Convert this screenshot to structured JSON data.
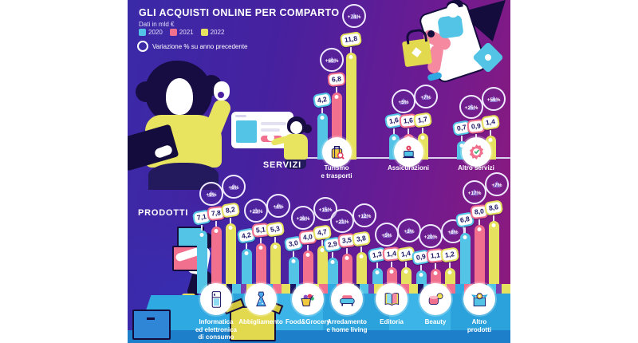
{
  "header": {
    "title": "GLI ACQUISTI ONLINE PER COMPARTO",
    "subtitle": "Dati in mld €",
    "legend": [
      {
        "label": "2020",
        "color": "#54c4e6"
      },
      {
        "label": "2021",
        "color": "#f0708e"
      },
      {
        "label": "2022",
        "color": "#e6e15e"
      }
    ],
    "note": "Variazione % su anno precedente"
  },
  "chart_data": [
    {
      "type": "bar",
      "section": "SERVIZI",
      "unit": "mld €",
      "years": [
        "2020",
        "2021",
        "2022"
      ],
      "year_colors": [
        "#54c4e6",
        "#f0708e",
        "#e6e15e"
      ],
      "groups": [
        {
          "label": [
            "Turismo",
            "e trasporti"
          ],
          "icon": "luggage-icon",
          "values": [
            4.2,
            6.8,
            11.8
          ],
          "display": [
            "4,2",
            "6,8",
            "11,8"
          ],
          "pct": [
            null,
            "+60%",
            "+74%"
          ]
        },
        {
          "label": [
            "Assicurazioni"
          ],
          "icon": "insurance-icon",
          "values": [
            1.6,
            1.6,
            1.7
          ],
          "display": [
            "1,6",
            "1,6",
            "1,7"
          ],
          "pct": [
            null,
            "+5%",
            "+7%"
          ]
        },
        {
          "label": [
            "Altro servizi"
          ],
          "icon": "badge-check-icon",
          "values": [
            0.7,
            0.9,
            1.4
          ],
          "display": [
            "0,7",
            "0,9",
            "1,4"
          ],
          "pct": [
            null,
            "+25%",
            "+56%"
          ]
        }
      ]
    },
    {
      "type": "bar",
      "section": "PRODOTTI",
      "unit": "mld €",
      "years": [
        "2020",
        "2021",
        "2022"
      ],
      "year_colors": [
        "#54c4e6",
        "#f0708e",
        "#e6e15e"
      ],
      "groups": [
        {
          "label": [
            "Informatica",
            "ed elettronica",
            "di consumo"
          ],
          "icon": "appliance-icon",
          "values": [
            7.1,
            7.8,
            8.2
          ],
          "display": [
            "7,1",
            "7,8",
            "8,2"
          ],
          "pct": [
            null,
            "+9%",
            "+6%"
          ]
        },
        {
          "label": [
            "Abbigliamento"
          ],
          "icon": "dress-icon",
          "values": [
            4.2,
            5.1,
            5.3
          ],
          "display": [
            "4,2",
            "5,1",
            "5,3"
          ],
          "pct": [
            null,
            "+23%",
            "+4%"
          ]
        },
        {
          "label": [
            "Food&Grocery"
          ],
          "icon": "grocery-icon",
          "values": [
            3.0,
            4.0,
            4.7
          ],
          "display": [
            "3,0",
            "4,0",
            "4,7"
          ],
          "pct": [
            null,
            "+36%",
            "+15%"
          ]
        },
        {
          "label": [
            "Arredamento",
            "e home living"
          ],
          "icon": "sofa-icon",
          "values": [
            2.9,
            3.5,
            3.8
          ],
          "display": [
            "2,9",
            "3,5",
            "3,8"
          ],
          "pct": [
            null,
            "+21%",
            "+12%"
          ]
        },
        {
          "label": [
            "Editoria"
          ],
          "icon": "book-icon",
          "values": [
            1.3,
            1.4,
            1.4
          ],
          "display": [
            "1,3",
            "1,4",
            "1,4"
          ],
          "pct": [
            null,
            "+5%",
            "+3%"
          ]
        },
        {
          "label": [
            "Beauty"
          ],
          "icon": "beauty-icon",
          "values": [
            0.9,
            1.1,
            1.2
          ],
          "display": [
            "0,9",
            "1,1",
            "1,2"
          ],
          "pct": [
            null,
            "+20%",
            "+8%"
          ]
        },
        {
          "label": [
            "Altro",
            "prodotti"
          ],
          "icon": "gift-box-icon",
          "values": [
            6.8,
            8.0,
            8.6
          ],
          "display": [
            "6,8",
            "8,0",
            "8,6"
          ],
          "pct": [
            null,
            "+17%",
            "+7%"
          ]
        }
      ]
    }
  ]
}
